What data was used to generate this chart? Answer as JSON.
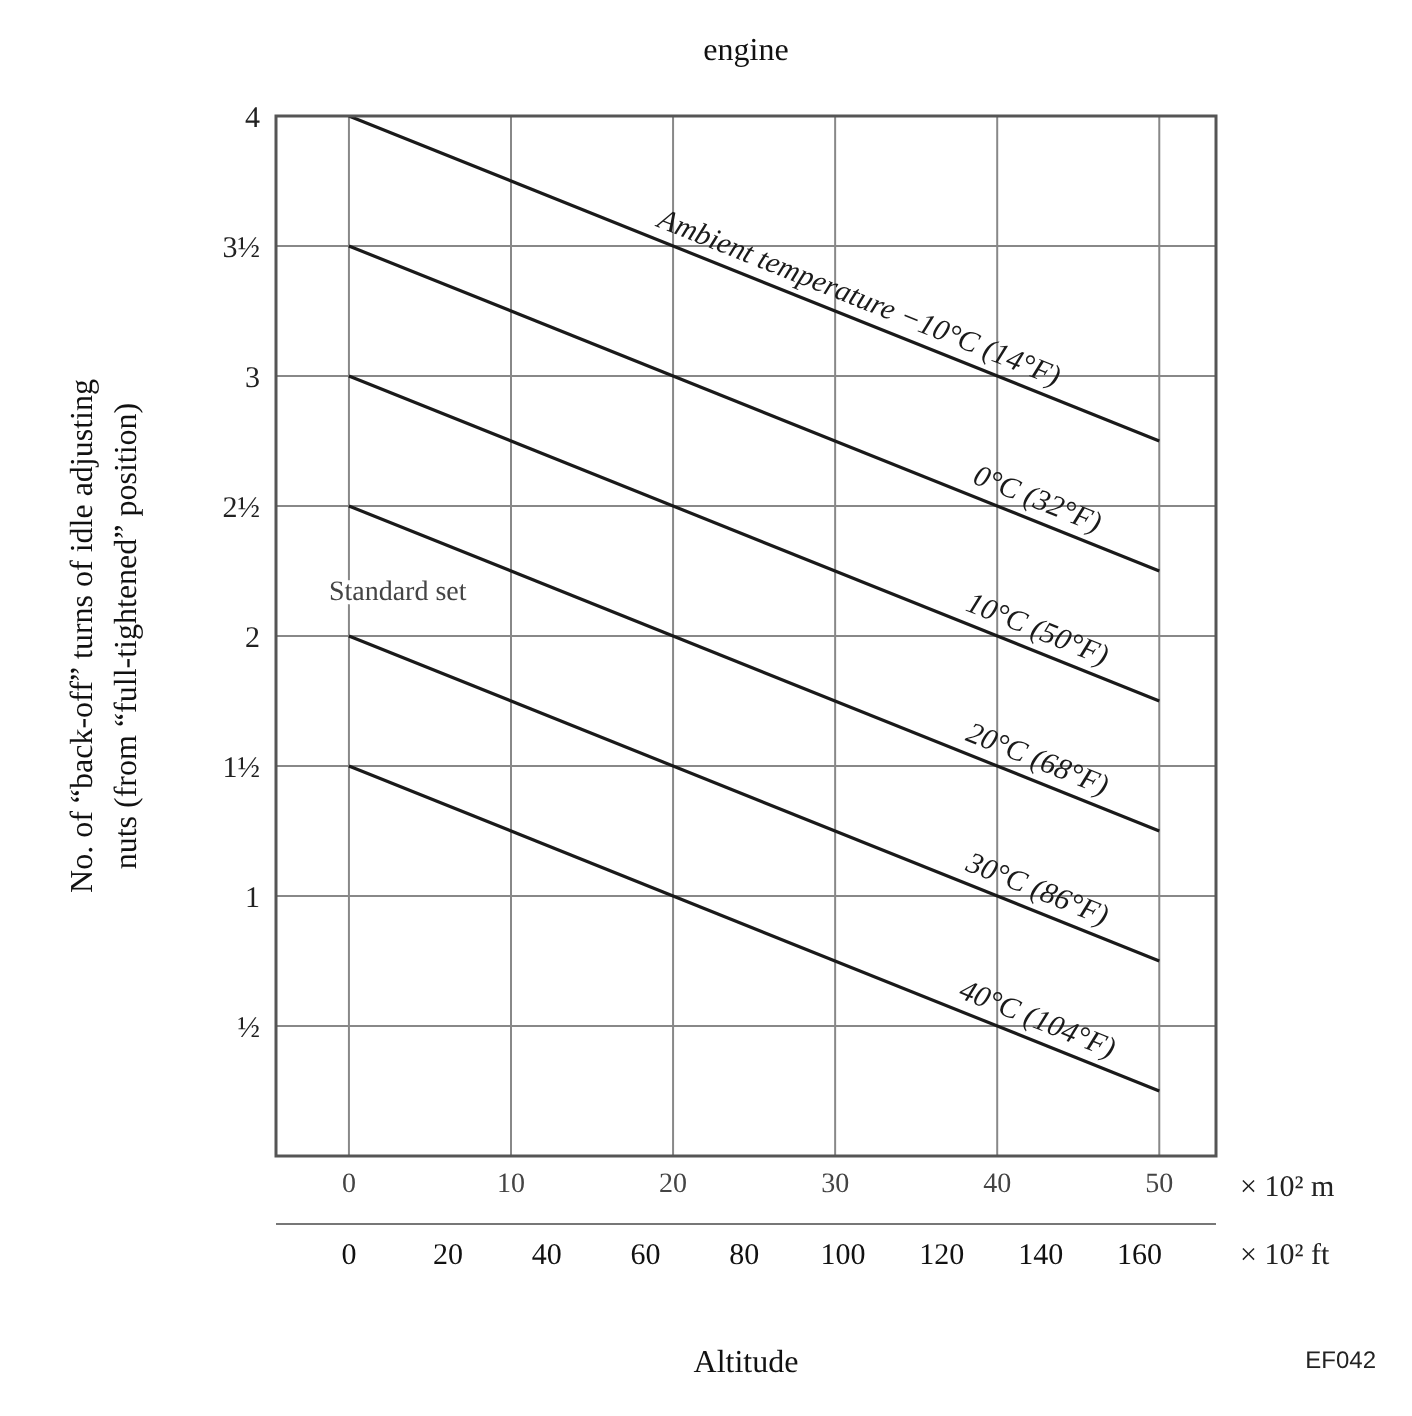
{
  "chart_data": {
    "type": "line",
    "title": "engine",
    "xlabel": "Altitude",
    "ylabel": "No. of “back-off” turns of idle adjusting nuts (from “full-tightened” position)",
    "xlim": [
      -4.5,
      53.5
    ],
    "xticks": [
      0,
      10,
      20,
      30,
      40,
      50
    ],
    "x2lim": [
      -14.8,
      175.5
    ],
    "x2ticks": [
      0,
      20,
      40,
      60,
      80,
      100,
      120,
      140,
      160
    ],
    "x": [
      0,
      50
    ],
    "ylim": [
      0,
      4
    ],
    "yticks": [
      {
        "value": 0.5,
        "label": "½"
      },
      1,
      {
        "value": 1.5,
        "label": "1½"
      },
      2,
      {
        "value": 2.5,
        "label": "2½"
      },
      3,
      {
        "value": 3.5,
        "label": "3½"
      },
      4
    ],
    "grid": true,
    "legend": false,
    "marker": "none",
    "line_style": "solid",
    "series": [
      {
        "name": "Ambient temperature −10°C (14°F)",
        "color": "#1a1a1a",
        "values": [
          4,
          2.75
        ]
      },
      {
        "name": "0°C (32°F)",
        "color": "#1a1a1a",
        "values": [
          3.5,
          2.25
        ]
      },
      {
        "name": "10°C (50°F)",
        "color": "#1a1a1a",
        "values": [
          3,
          1.75
        ]
      },
      {
        "name": "20°C (68°F)",
        "color": "#1a1a1a",
        "values": [
          2.5,
          1.25
        ]
      },
      {
        "name": "30°C (86°F)",
        "color": "#1a1a1a",
        "values": [
          2,
          0.75
        ]
      },
      {
        "name": "40°C (104°F)",
        "color": "#1a1a1a",
        "values": [
          1.5,
          0.25
        ]
      }
    ],
    "annotations": [
      {
        "text": "Standard set",
        "x": 0,
        "y": 2
      },
      "× 10² m",
      "× 10² ft",
      "EF042"
    ]
  }
}
